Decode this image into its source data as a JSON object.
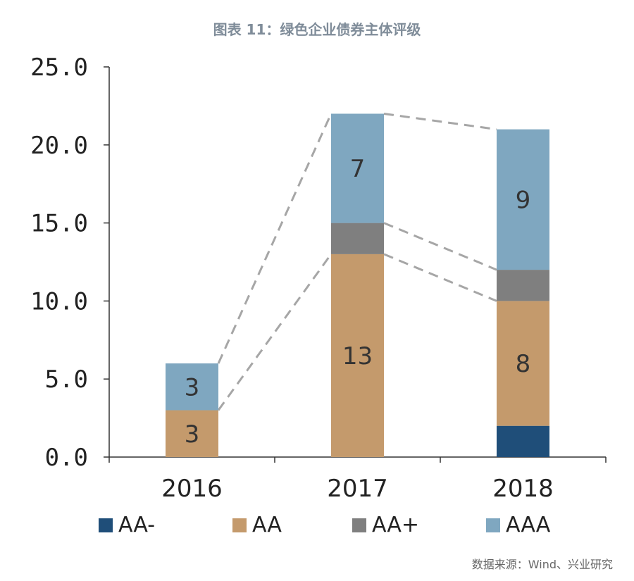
{
  "title": "图表 11：绿色企业债券主体评级",
  "source": "数据来源：Wind、兴业研究",
  "chart_data": {
    "type": "bar",
    "stacked": true,
    "categories": [
      "2016",
      "2017",
      "2018"
    ],
    "series": [
      {
        "name": "AA-",
        "values": [
          0,
          0,
          2
        ],
        "color": "#1f4e79",
        "labels": [
          "",
          "",
          ""
        ]
      },
      {
        "name": "AA",
        "values": [
          3,
          13,
          8
        ],
        "color": "#c49a6c",
        "labels": [
          "3",
          "13",
          "8"
        ]
      },
      {
        "name": "AA+",
        "values": [
          0,
          2,
          2
        ],
        "color": "#7f7f7f",
        "labels": [
          "",
          "",
          ""
        ]
      },
      {
        "name": "AAA",
        "values": [
          3,
          7,
          9
        ],
        "color": "#7fa7c0",
        "labels": [
          "3",
          "7",
          "9"
        ]
      }
    ],
    "y_ticks": [
      "0.0",
      "5.0",
      "10.0",
      "15.0",
      "20.0",
      "25.0"
    ],
    "ylim": [
      0,
      25
    ],
    "legend_position": "bottom",
    "connector_lines": true,
    "grid": false
  }
}
